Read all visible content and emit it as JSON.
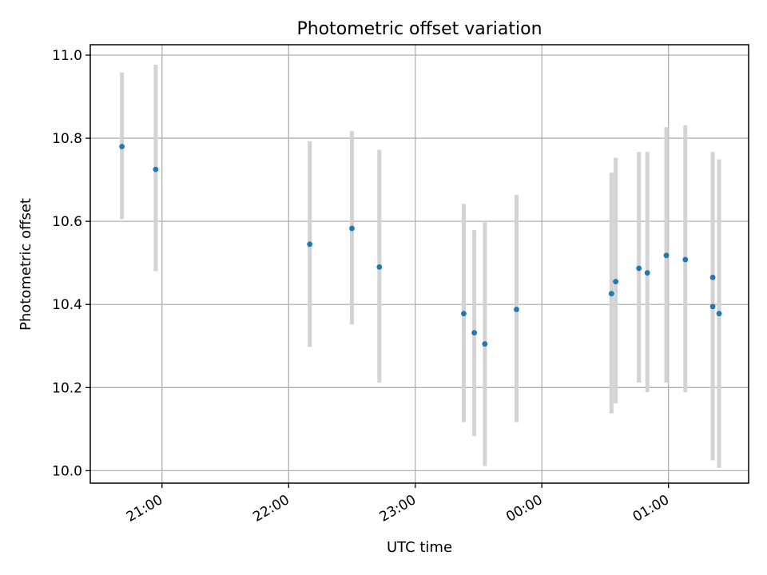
{
  "chart_data": {
    "type": "scatter",
    "title": "Photometric offset variation",
    "xlabel": "UTC time",
    "ylabel": "Photometric offset",
    "xlim": [
      "20:26",
      "01:38"
    ],
    "ylim": [
      9.97,
      11.025
    ],
    "x_ticks": [
      "21:00",
      "22:00",
      "23:00",
      "00:00",
      "01:00"
    ],
    "y_ticks": [
      "10.0",
      "10.2",
      "10.4",
      "10.6",
      "10.8",
      "11.0"
    ],
    "grid": true,
    "point_color": "#1f77b4",
    "errorbar_color": "#d3d3d3",
    "points": [
      {
        "x": "20:41",
        "y": 10.78,
        "ylow": 10.605,
        "yhigh": 10.958
      },
      {
        "x": "20:57",
        "y": 10.725,
        "ylow": 10.48,
        "yhigh": 10.977
      },
      {
        "x": "22:10",
        "y": 10.545,
        "ylow": 10.298,
        "yhigh": 10.793
      },
      {
        "x": "22:30",
        "y": 10.583,
        "ylow": 10.352,
        "yhigh": 10.817
      },
      {
        "x": "22:43",
        "y": 10.49,
        "ylow": 10.212,
        "yhigh": 10.772
      },
      {
        "x": "23:23",
        "y": 10.378,
        "ylow": 10.117,
        "yhigh": 10.642
      },
      {
        "x": "23:28",
        "y": 10.332,
        "ylow": 10.083,
        "yhigh": 10.579
      },
      {
        "x": "23:33",
        "y": 10.305,
        "ylow": 10.011,
        "yhigh": 10.602
      },
      {
        "x": "23:48",
        "y": 10.388,
        "ylow": 10.117,
        "yhigh": 10.664
      },
      {
        "x": "00:33",
        "y": 10.426,
        "ylow": 10.138,
        "yhigh": 10.717
      },
      {
        "x": "00:35",
        "y": 10.455,
        "ylow": 10.162,
        "yhigh": 10.753
      },
      {
        "x": "00:46",
        "y": 10.487,
        "ylow": 10.212,
        "yhigh": 10.767
      },
      {
        "x": "00:50",
        "y": 10.476,
        "ylow": 10.189,
        "yhigh": 10.767
      },
      {
        "x": "00:59",
        "y": 10.518,
        "ylow": 10.212,
        "yhigh": 10.827
      },
      {
        "x": "01:08",
        "y": 10.508,
        "ylow": 10.189,
        "yhigh": 10.831
      },
      {
        "x": "01:21",
        "y": 10.465,
        "ylow": 10.178,
        "yhigh": 10.758
      },
      {
        "x": "01:21",
        "y": 10.395,
        "ylow": 10.025,
        "yhigh": 10.767
      },
      {
        "x": "01:24",
        "y": 10.378,
        "ylow": 10.007,
        "yhigh": 10.749
      }
    ]
  }
}
